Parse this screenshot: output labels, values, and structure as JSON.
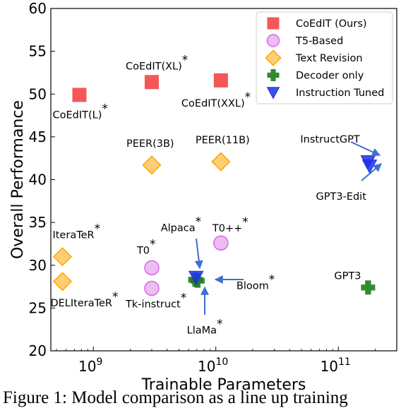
{
  "chart_data": {
    "type": "scatter",
    "xlabel": "Trainable Parameters",
    "ylabel": "Overall Performance",
    "xscale": "log",
    "xlim": [
      450000000,
      300000000000
    ],
    "ylim": [
      20,
      60
    ],
    "yticks": [
      "20",
      "25",
      "30",
      "35",
      "40",
      "45",
      "50",
      "55",
      "60"
    ],
    "xticks": [
      {
        "base": "10",
        "exp": "9",
        "value": 1000000000
      },
      {
        "base": "10",
        "exp": "10",
        "value": 10000000000
      },
      {
        "base": "10",
        "exp": "11",
        "value": 100000000000
      }
    ],
    "legend_position": "top-right",
    "legend": [
      {
        "name": "CoEdIT (Ours)",
        "marker": "square",
        "color": "#f23a3a"
      },
      {
        "name": "T5-Based",
        "marker": "circle",
        "color": "#d66ae3"
      },
      {
        "name": "Text Revision",
        "marker": "diamond",
        "color": "#ffa500"
      },
      {
        "name": "Decoder only",
        "marker": "plus",
        "color": "#1c7d1c"
      },
      {
        "name": "Instruction Tuned",
        "marker": "triangle",
        "color": "#1f2fe8"
      }
    ],
    "series": [
      {
        "category": "CoEdIT (Ours)",
        "marker": "square",
        "color": "#f23a3a",
        "points": [
          {
            "label": "CoEdIT(L)",
            "star": true,
            "x": 770000000,
            "y": 49.9
          },
          {
            "label": "CoEdIT(XL)",
            "star": true,
            "x": 3000000000,
            "y": 51.4
          },
          {
            "label": "CoEdIT(XXL)",
            "star": true,
            "x": 11000000000,
            "y": 51.6
          }
        ]
      },
      {
        "category": "T5-Based",
        "marker": "circle",
        "color": "#d66ae3",
        "points": [
          {
            "label": "T0",
            "star": true,
            "x": 3000000000,
            "y": 29.7
          },
          {
            "label": "Tk-instruct",
            "star": true,
            "x": 3000000000,
            "y": 27.3
          },
          {
            "label": "T0++",
            "star": true,
            "x": 11000000000,
            "y": 32.6
          }
        ]
      },
      {
        "category": "Text Revision",
        "marker": "diamond",
        "color": "#ffa500",
        "points": [
          {
            "label": "IteraTeR",
            "star": true,
            "x": 560000000,
            "y": 31.0
          },
          {
            "label": "DELIteraTeR",
            "star": true,
            "x": 560000000,
            "y": 28.1
          },
          {
            "label": "PEER(3B)",
            "star": false,
            "x": 3000000000,
            "y": 41.7
          },
          {
            "label": "PEER(11B)",
            "star": false,
            "x": 11000000000,
            "y": 42.1
          }
        ]
      },
      {
        "category": "Decoder only",
        "marker": "plus",
        "color": "#1c7d1c",
        "points": [
          {
            "label": "Bloom",
            "star": true,
            "x": 7100000000,
            "y": 28.2
          },
          {
            "label": "LlaMa",
            "star": true,
            "x": 6800000000,
            "y": 28.3
          },
          {
            "label": "GPT3",
            "star": false,
            "x": 175000000000,
            "y": 27.4
          }
        ]
      },
      {
        "category": "Instruction Tuned",
        "marker": "triangle",
        "color": "#1f2fe8",
        "points": [
          {
            "label": "Alpaca",
            "star": true,
            "x": 6900000000,
            "y": 28.6
          },
          {
            "label": "InstructGPT",
            "star": false,
            "x": 175000000000,
            "y": 42.1
          },
          {
            "label": "GPT3-Edit",
            "star": false,
            "x": 180000000000,
            "y": 41.6
          }
        ]
      }
    ]
  },
  "caption": "Figure 1: Model comparison as a line up training"
}
